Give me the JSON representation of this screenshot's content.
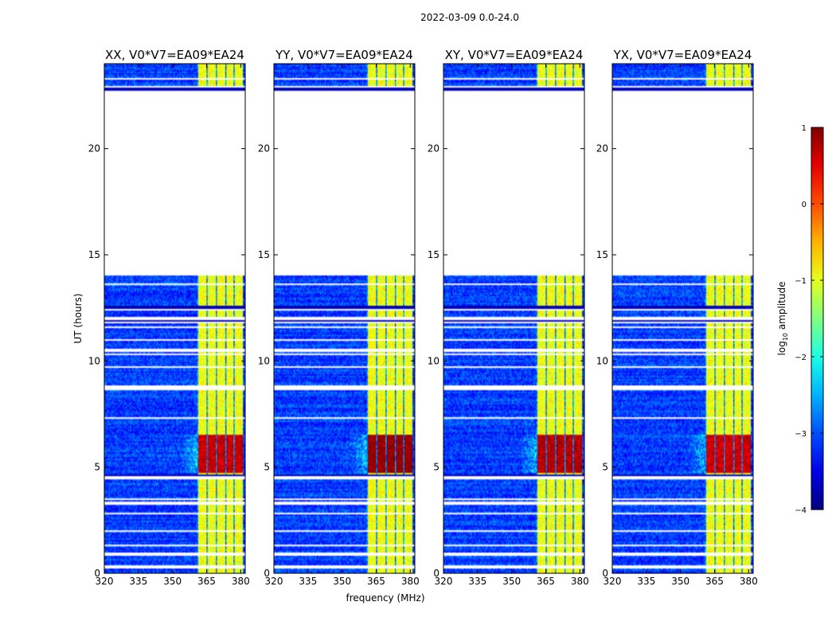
{
  "chart_data": {
    "type": "heatmap",
    "title": "2022-03-09 0.0-24.0",
    "xlabel": "frequency (MHz)",
    "ylabel": "UT (hours)",
    "xlim": [
      320,
      382
    ],
    "ylim": [
      0,
      24
    ],
    "x_ticks": [
      "320",
      "335",
      "350",
      "365",
      "380"
    ],
    "y_ticks": [
      "0",
      "5",
      "10",
      "15",
      "20"
    ],
    "colorbar": {
      "label": "log10 amplitude",
      "label_prefix": "log",
      "label_sub": "10",
      "label_suffix": " amplitude",
      "ticks": [
        "1",
        "0",
        "−1",
        "−2",
        "−3",
        "−4"
      ],
      "range": [
        -4,
        1
      ],
      "colormap": "jet"
    },
    "panels": [
      {
        "title": "XX, V0*V7=EA09*EA24",
        "peak": 0.82
      },
      {
        "title": "YY, V0*V7=EA09*EA24",
        "peak": 1.0
      },
      {
        "title": "XY, V0*V7=EA09*EA24",
        "peak": 0.88
      },
      {
        "title": "YX, V0*V7=EA09*EA24",
        "peak": 0.8
      }
    ],
    "data_gap_hours": [
      14.0,
      22.7
    ],
    "flagged_hours": [
      0.3,
      0.9,
      1.3,
      2.0,
      2.8,
      3.3,
      3.5,
      4.5,
      7.3,
      8.7,
      8.8,
      9.7,
      10.3,
      10.5,
      11.0,
      11.6,
      11.8,
      12.0,
      12.4,
      13.6,
      22.9,
      23.3
    ],
    "dark_band_hours": [
      4.6,
      12.5,
      11.9,
      22.8
    ],
    "bright_band_mhz": [
      361,
      381
    ],
    "strong_event_hours": [
      4.7,
      6.5
    ]
  }
}
